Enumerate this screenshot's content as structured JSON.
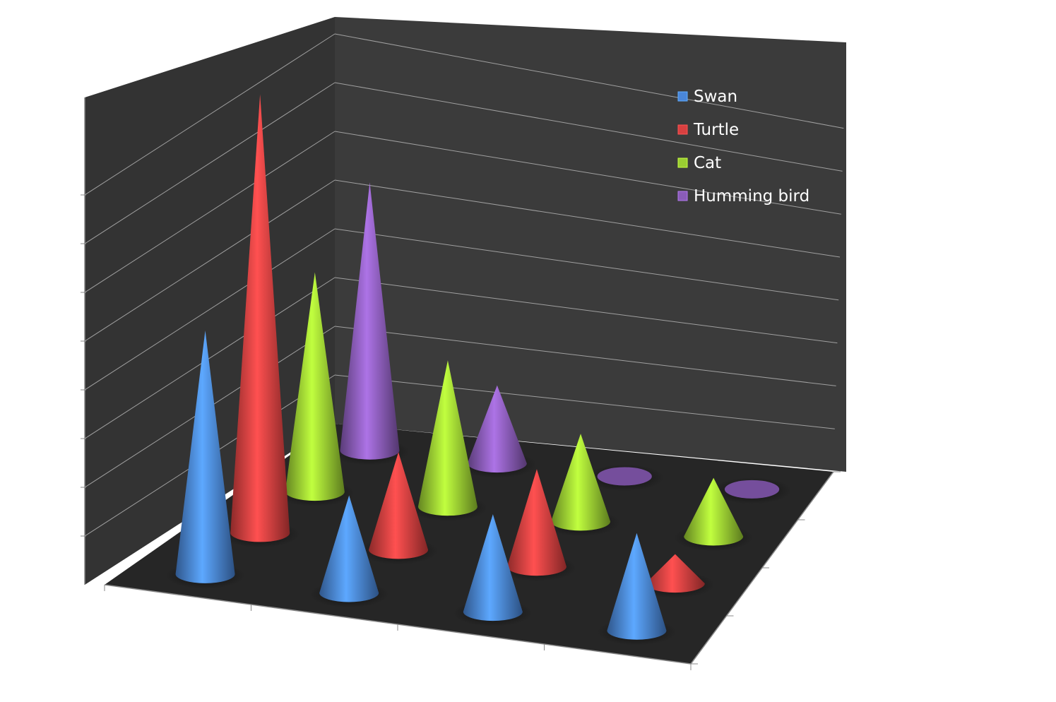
{
  "chart_data": {
    "type": "bar",
    "shape": "cone-3d",
    "categories": [
      "",
      "",
      "",
      ""
    ],
    "series": [
      {
        "name": "Swan",
        "values": [
          5,
          2,
          2,
          2
        ],
        "color": "#4a86d8"
      },
      {
        "name": "Turtle",
        "values": [
          9,
          2,
          2,
          0.6
        ],
        "color": "#d84040"
      },
      {
        "name": "Cat",
        "values": [
          4.5,
          3,
          1.8,
          1.2
        ],
        "color": "#9acd32"
      },
      {
        "name": "Humming bird",
        "values": [
          5.5,
          1.6,
          0,
          0
        ],
        "color": "#8a5cb8"
      }
    ],
    "title": "",
    "xlabel": "",
    "ylabel": "",
    "ylim": [
      0,
      10
    ],
    "grid": true,
    "legend": "top-right",
    "colors": {
      "walls": "#3a3a3a",
      "floor": "#262626",
      "gridline": "#a0a0a0"
    }
  }
}
